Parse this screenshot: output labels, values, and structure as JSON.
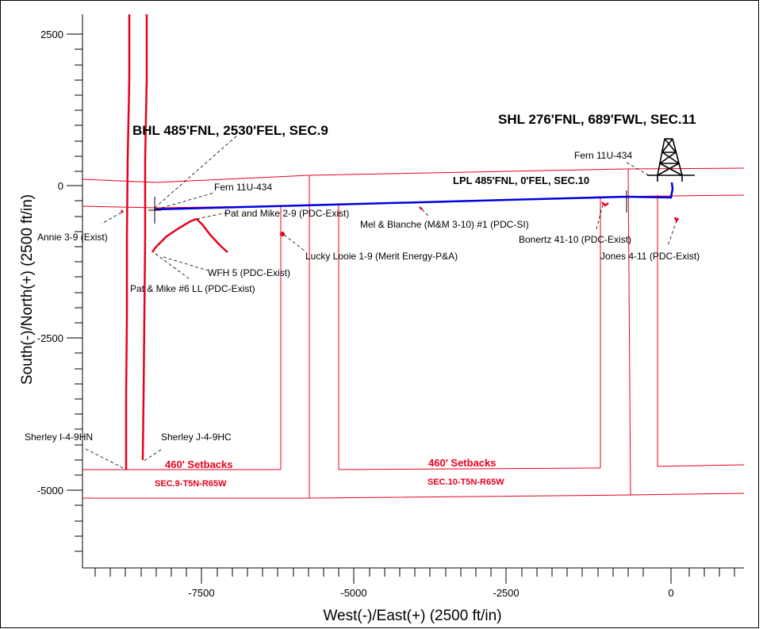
{
  "axes": {
    "xlabel": "West(-)/East(+) (2500 ft/in)",
    "ylabel": "South(-)/North(+) (2500 ft/in)",
    "x_ticks": [
      "-7500",
      "-5000",
      "-2500",
      "0"
    ],
    "y_ticks": [
      "2500",
      "0",
      "-2500",
      "-5000"
    ]
  },
  "headings": {
    "bhl": "BHL 485'FNL, 2530'FEL, SEC.9",
    "shl": "SHL 276'FNL, 689'FWL, SEC.11",
    "lpl": "LPL 485'FNL, 0'FEL, SEC.10"
  },
  "setbacks": {
    "left": "460' Setbacks",
    "right": "460' Setbacks"
  },
  "sections": {
    "sec9": "SEC.9-T5N-R65W",
    "sec10": "SEC.10-T5N-R65W"
  },
  "wells": {
    "fern_right": "Fern 11U-434",
    "fern_left": "Fern 11U-434",
    "annie": "Annie 3-9 (Exist)",
    "pat_mike_29": "Pat and Mike 2-9 (PDC-Exist)",
    "mel_blanche": "Mel & Blanche (M&M 3-10) #1 (PDC-SI)",
    "bonertz": "Bonertz 41-10 (PDC-Exist)",
    "jones": "Jones 4-11 (PDC-Exist)",
    "lucky_looie": "Lucky Looie 1-9 (Merit Energy-P&A)",
    "wfh5": "WFH 5 (PDC-Exist)",
    "pat_mike_6": "Pat & Mike #6 LL (PDC-Exist)",
    "sherley_i": "Sherley I-4-9HN",
    "sherley_j": "Sherley J-4-9HC"
  },
  "colors": {
    "lease_lines": "#e8001c",
    "planned_wellbore": "#0000e0",
    "annotations": "#000000"
  },
  "icons": [
    "drilling-rig-icon"
  ]
}
